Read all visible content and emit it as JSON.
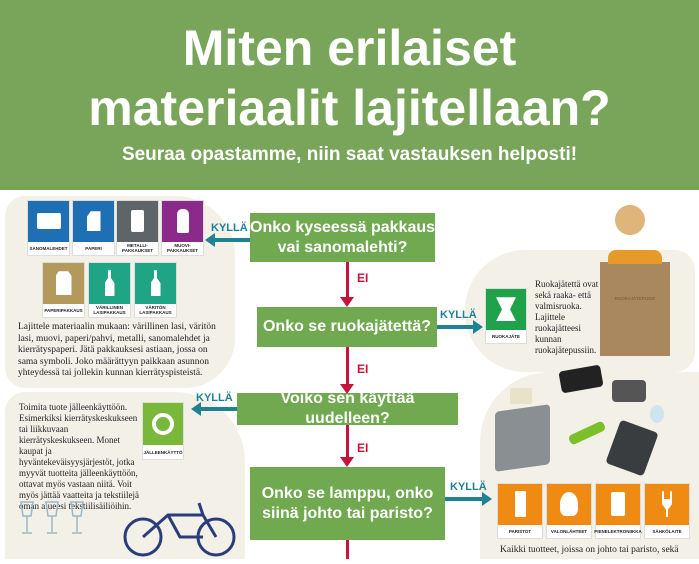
{
  "header": {
    "title_line1": "Miten erilaiset",
    "title_line2": "materiaalit lajitellaan?",
    "subtitle": "Seuraa opastamme, niin saat vastauksen helposti!"
  },
  "flow": {
    "questions": [
      "Onko kyseessä pakkaus vai sanomalehti?",
      "Onko se ruokajätettä?",
      "Voiko sen käyttää uudelleen?",
      "Onko se lamppu, onko siinä johto tai paristo?"
    ],
    "q1_lines": [
      "Onko kyseessä pakkaus",
      "vai sanomalehti?"
    ],
    "q4_lines": [
      "Onko se lamppu, onko",
      "siinä johto tai paristo?"
    ],
    "yes": "KYLLÄ",
    "no": "EI"
  },
  "colors": {
    "header": "#78a55a",
    "question": "#70a94f",
    "no_arrow": "#c8143c",
    "yes_arrow": "#1e8294"
  },
  "packaging": {
    "tiles": [
      {
        "label": "SANOMALEHDET",
        "color": "#1f6fb5",
        "icon": "newspaper-icon"
      },
      {
        "label": "PAPERI",
        "color": "#1f6fb5",
        "icon": "paper-icon"
      },
      {
        "label": "METALLI-PAKKAUKSET",
        "color": "#5d6568",
        "icon": "can-icon"
      },
      {
        "label": "MUOVI-PAKKAUKSET",
        "color": "#8b2a8b",
        "icon": "plastic-bottle-icon"
      },
      {
        "label": "PAPERIPAKKAUS",
        "color": "#b39a5c",
        "icon": "carton-icon"
      },
      {
        "label": "VÄRILLINEN LASIPAKKAUS",
        "color": "#1fa585",
        "icon": "glass-bottle-icon"
      },
      {
        "label": "VÄRITÖN LASIPAKKAUS",
        "color": "#1fa585",
        "icon": "glass-bottle-icon"
      }
    ],
    "text": "Lajittele materiaalin mukaan: värillinen lasi, väritön lasi, muovi, paperi/pahvi, metalli, sanomalehdet ja kierrätyspaperi. Jätä pakkauksesi astiaan, jossa on sama symboli. Joko määrättyyn paikkaan asunnon yhteydessä tai jollekin kunnan kierrätyspisteistä."
  },
  "food": {
    "tile": {
      "label": "RUOKAJÄTE",
      "color": "#1fa24a",
      "icon": "apple-core-icon"
    },
    "text": "Ruokajätettä ovat sekä raaka- että valmisruoka. Lajittele ruokajätteesi kunnan ruokajätepussiin.",
    "bag_label": "RUOKAJÄTEPUSSI"
  },
  "reuse": {
    "tile": {
      "label": "JÄLLEENKÄYTTÖ",
      "color": "#7ab83c",
      "icon": "recycle-arrows-icon"
    },
    "text": "Toimita tuote jälleenkäyttöön. Esimerkiksi kierrätyskeskukseen tai liikkuvaan kierrätyskeskukseen. Monet kaupat ja hyväntekeväisyysjärjestöt, jotka myyvät tuotteita jälleenkäyttöön, ottavat myös vastaan niitä. Voit myös jättää vaatteita ja tekstiilejä oman alueesi tekstiilisäiliöihin."
  },
  "electronics": {
    "tiles": [
      {
        "label": "PARISTOT",
        "color": "#ef8a12",
        "icon": "battery-icon"
      },
      {
        "label": "VALONLÄHTEET",
        "color": "#ef8a12",
        "icon": "lightbulb-icon"
      },
      {
        "label": "PIENELEKTRONIIKKA",
        "color": "#ef8a12",
        "icon": "phone-icon"
      },
      {
        "label": "SÄHKÖLAITE",
        "color": "#ef8a12",
        "icon": "plug-icon"
      }
    ],
    "text": "Kaikki tuotteet, joissa on johto tai paristo, sekä"
  }
}
